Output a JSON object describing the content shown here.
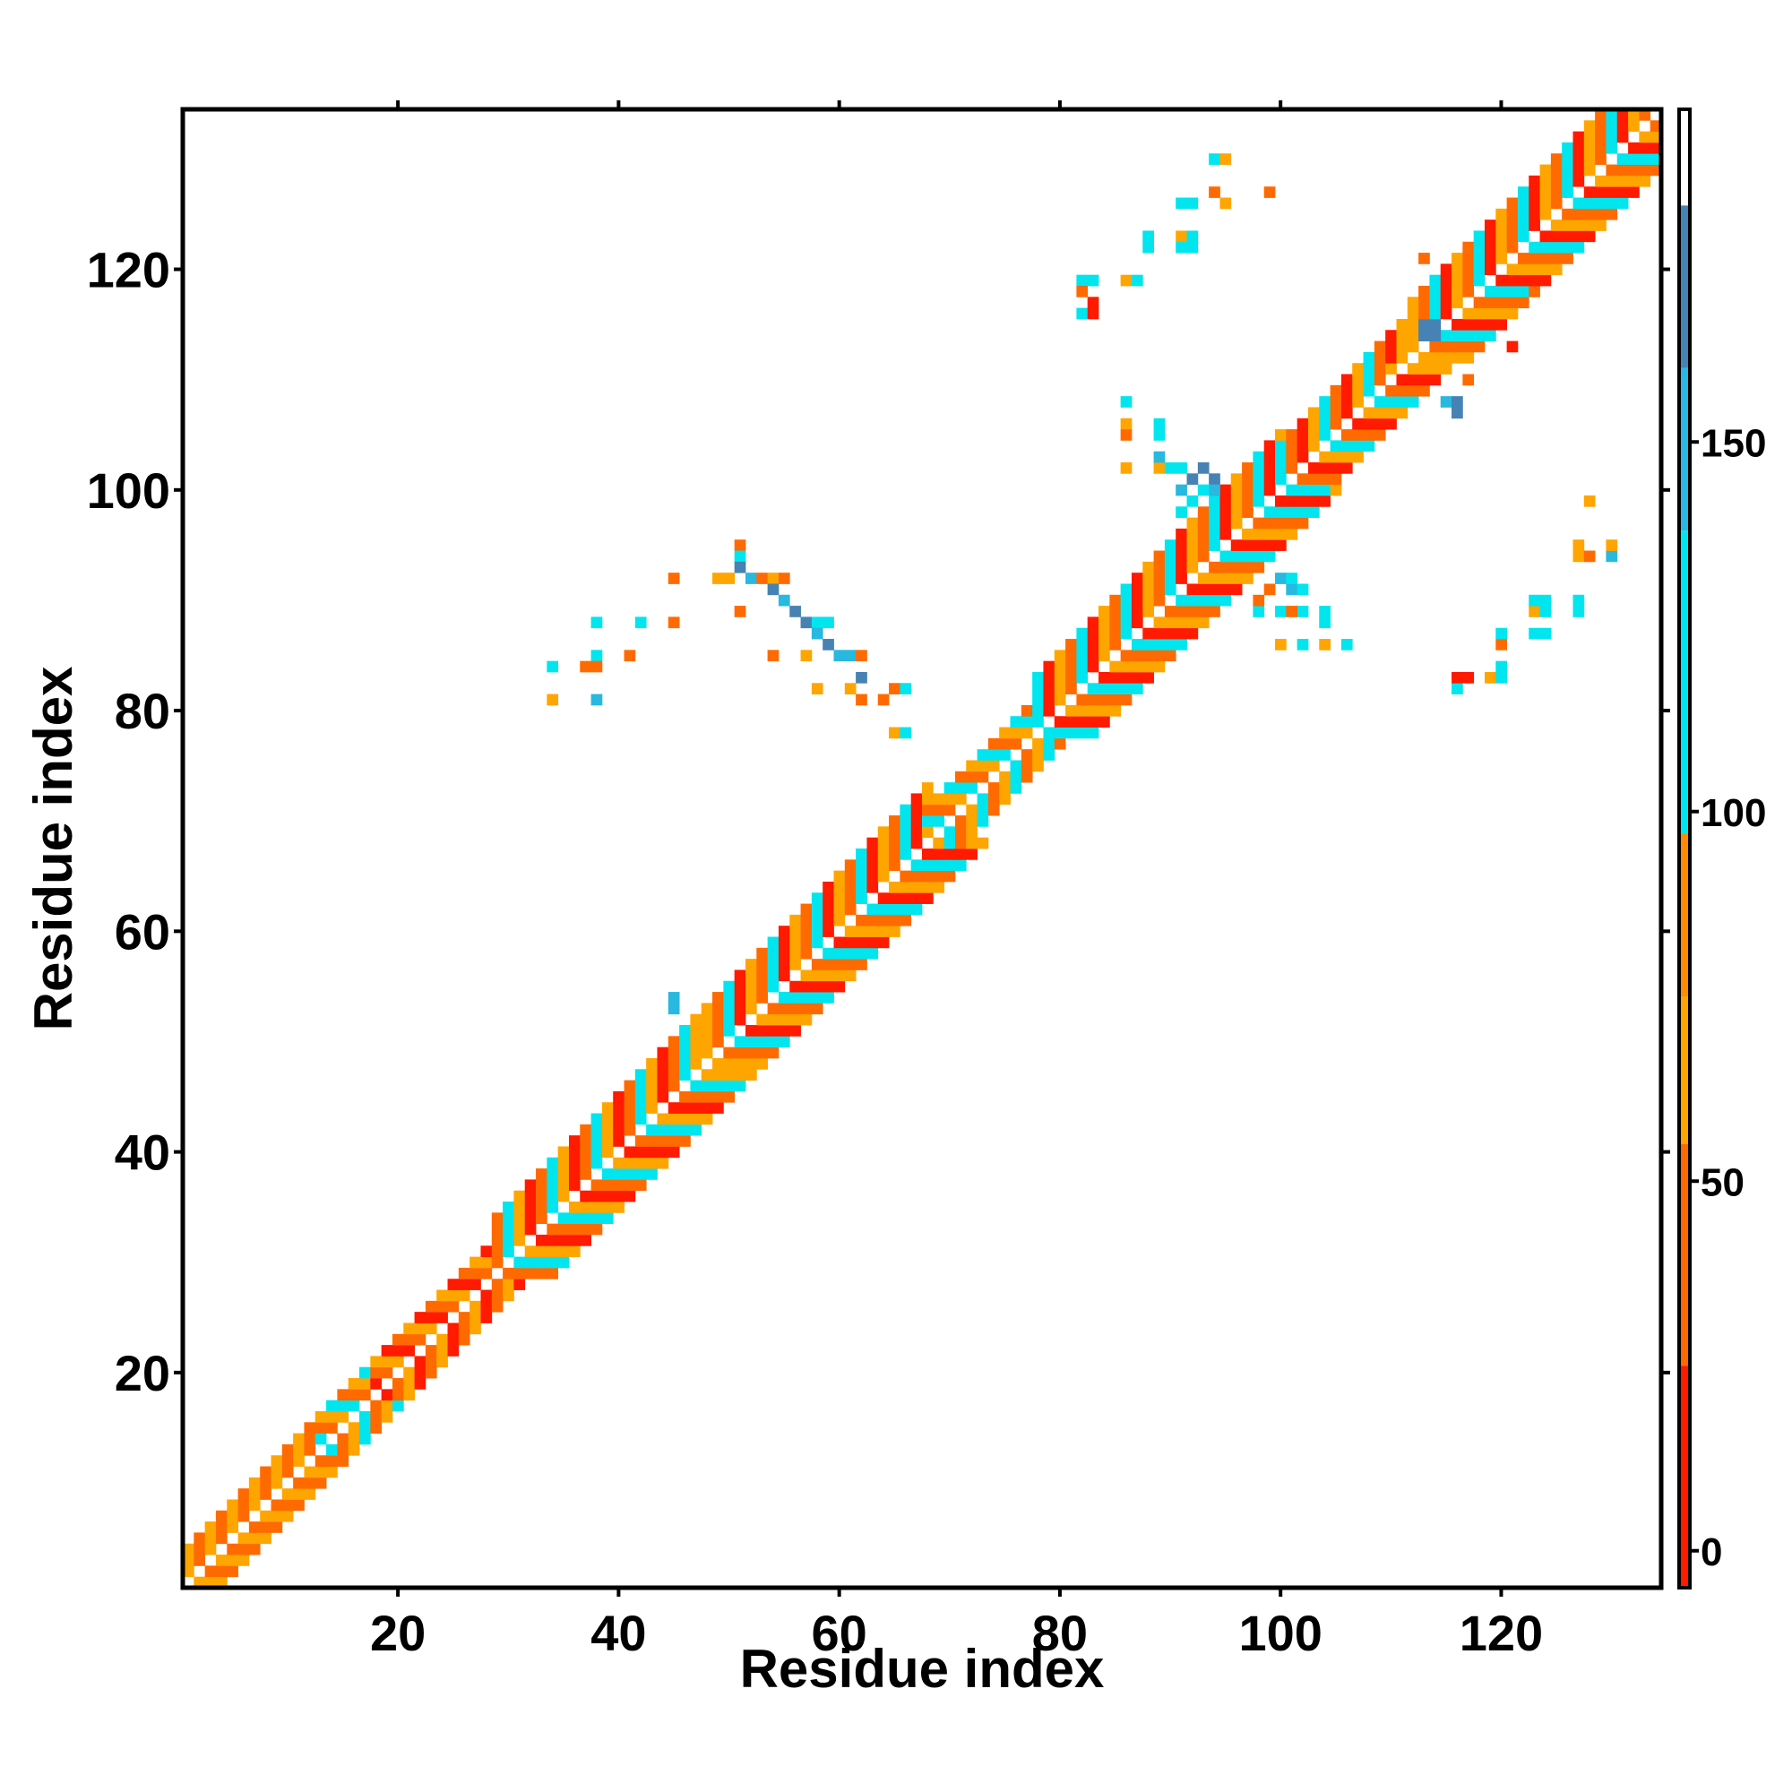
{
  "chart_data": {
    "type": "heatmap",
    "title": "",
    "xlabel": "Residue index",
    "ylabel": "Residue index",
    "xlim": [
      1,
      134
    ],
    "ylim": [
      1,
      134
    ],
    "x_ticks": [
      20,
      40,
      60,
      80,
      100,
      120
    ],
    "y_ticks": [
      20,
      40,
      60,
      80,
      100,
      120
    ],
    "grid": false,
    "symmetric": true,
    "colorbar": {
      "range": [
        -5,
        195
      ],
      "ticks": [
        0,
        50,
        100,
        150
      ],
      "bands": [
        {
          "from": -5,
          "to": 25,
          "color": "#ff1a00"
        },
        {
          "from": 25,
          "to": 55,
          "color": "#ff6a00"
        },
        {
          "from": 55,
          "to": 75,
          "color": "#ffa500"
        },
        {
          "from": 75,
          "to": 97,
          "color": "#ff8c00"
        },
        {
          "from": 97,
          "to": 138,
          "color": "#00e5ee"
        },
        {
          "from": 138,
          "to": 160,
          "color": "#28b8e0"
        },
        {
          "from": 160,
          "to": 182,
          "color": "#4682b4"
        },
        {
          "from": 182,
          "to": 195,
          "color": "#ffffff"
        }
      ]
    },
    "palette": {
      "red": "#ff1a00",
      "dark_orange": "#ff6a00",
      "orange": "#ffa500",
      "cyan": "#00e5ee",
      "light_blue": "#28b8e0",
      "steel_blue": "#4682b4"
    },
    "diagonal_segments": [
      {
        "start": 1,
        "end": 13,
        "band": [
          1,
          2,
          3
        ],
        "colors": [
          "orange",
          "dark_orange"
        ]
      },
      {
        "start": 13,
        "end": 18,
        "band": [
          1,
          2,
          3
        ],
        "colors": [
          "orange",
          "cyan",
          "dark_orange"
        ]
      },
      {
        "start": 18,
        "end": 29,
        "band": [
          1,
          2,
          3
        ],
        "colors": [
          "red",
          "dark_orange",
          "orange"
        ]
      },
      {
        "start": 29,
        "end": 48,
        "band": [
          1,
          2,
          3,
          4,
          5
        ],
        "colors": [
          "dark_orange",
          "cyan",
          "orange",
          "red"
        ]
      },
      {
        "start": 48,
        "end": 68,
        "band": [
          1,
          2,
          3,
          4,
          5
        ],
        "colors": [
          "dark_orange",
          "cyan",
          "red",
          "orange"
        ]
      },
      {
        "start": 68,
        "end": 78,
        "band": [
          1,
          2,
          3
        ],
        "colors": [
          "cyan",
          "dark_orange",
          "orange"
        ]
      },
      {
        "start": 78,
        "end": 100,
        "band": [
          1,
          2,
          3,
          4,
          5
        ],
        "colors": [
          "dark_orange",
          "cyan",
          "red",
          "orange"
        ]
      },
      {
        "start": 100,
        "end": 112,
        "band": [
          1,
          2,
          3,
          4
        ],
        "colors": [
          "dark_orange",
          "red",
          "orange",
          "cyan"
        ]
      },
      {
        "start": 112,
        "end": 134,
        "band": [
          1,
          2,
          3,
          4,
          5
        ],
        "colors": [
          "dark_orange",
          "cyan",
          "red",
          "orange"
        ]
      }
    ],
    "contacts": [
      {
        "i": 51,
        "j": 95,
        "color": "dark_orange"
      },
      {
        "i": 51,
        "j": 94,
        "color": "cyan"
      },
      {
        "i": 51,
        "j": 93,
        "color": "steel_blue"
      },
      {
        "i": 52,
        "j": 92,
        "color": "light_blue"
      },
      {
        "i": 53,
        "j": 92,
        "color": "dark_orange"
      },
      {
        "i": 54,
        "j": 92,
        "color": "orange"
      },
      {
        "i": 55,
        "j": 92,
        "color": "dark_orange"
      },
      {
        "i": 54,
        "j": 91,
        "color": "steel_blue"
      },
      {
        "i": 55,
        "j": 90,
        "color": "light_blue"
      },
      {
        "i": 56,
        "j": 89,
        "color": "steel_blue"
      },
      {
        "i": 57,
        "j": 88,
        "color": "steel_blue"
      },
      {
        "i": 58,
        "j": 88,
        "color": "cyan"
      },
      {
        "i": 59,
        "j": 88,
        "color": "cyan"
      },
      {
        "i": 58,
        "j": 87,
        "color": "light_blue"
      },
      {
        "i": 59,
        "j": 86,
        "color": "steel_blue"
      },
      {
        "i": 60,
        "j": 85,
        "color": "light_blue"
      },
      {
        "i": 61,
        "j": 85,
        "color": "light_blue"
      },
      {
        "i": 62,
        "j": 85,
        "color": "dark_orange"
      },
      {
        "i": 62,
        "j": 83,
        "color": "steel_blue"
      },
      {
        "i": 61,
        "j": 82,
        "color": "orange"
      },
      {
        "i": 62,
        "j": 81,
        "color": "dark_orange"
      },
      {
        "i": 65,
        "j": 82,
        "color": "dark_orange"
      },
      {
        "i": 66,
        "j": 82,
        "color": "cyan"
      },
      {
        "i": 65,
        "j": 78,
        "color": "orange"
      },
      {
        "i": 66,
        "j": 78,
        "color": "cyan"
      },
      {
        "i": 64,
        "j": 81,
        "color": "dark_orange"
      },
      {
        "i": 57,
        "j": 85,
        "color": "orange"
      },
      {
        "i": 54,
        "j": 85,
        "color": "dark_orange"
      },
      {
        "i": 58,
        "j": 82,
        "color": "orange"
      },
      {
        "i": 51,
        "j": 89,
        "color": "dark_orange"
      },
      {
        "i": 49,
        "j": 92,
        "color": "orange"
      },
      {
        "i": 50,
        "j": 92,
        "color": "orange"
      },
      {
        "i": 45,
        "j": 92,
        "color": "dark_orange"
      },
      {
        "i": 45,
        "j": 88,
        "color": "dark_orange"
      },
      {
        "i": 42,
        "j": 88,
        "color": "cyan"
      },
      {
        "i": 38,
        "j": 88,
        "color": "cyan"
      },
      {
        "i": 41,
        "j": 85,
        "color": "dark_orange"
      },
      {
        "i": 38,
        "j": 85,
        "color": "cyan"
      },
      {
        "i": 37,
        "j": 84,
        "color": "dark_orange"
      },
      {
        "i": 38,
        "j": 84,
        "color": "dark_orange"
      },
      {
        "i": 34,
        "j": 84,
        "color": "cyan"
      },
      {
        "i": 34,
        "j": 81,
        "color": "orange"
      },
      {
        "i": 38,
        "j": 81,
        "color": "light_blue"
      },
      {
        "i": 45,
        "j": 54,
        "color": "light_blue"
      },
      {
        "i": 45,
        "j": 53,
        "color": "light_blue"
      },
      {
        "i": 82,
        "j": 119,
        "color": "cyan"
      },
      {
        "i": 83,
        "j": 119,
        "color": "cyan"
      },
      {
        "i": 82,
        "j": 118,
        "color": "dark_orange"
      },
      {
        "i": 83,
        "j": 117,
        "color": "red"
      },
      {
        "i": 82,
        "j": 116,
        "color": "cyan"
      },
      {
        "i": 83,
        "j": 116,
        "color": "red"
      },
      {
        "i": 86,
        "j": 119,
        "color": "orange"
      },
      {
        "i": 87,
        "j": 119,
        "color": "cyan"
      },
      {
        "i": 88,
        "j": 123,
        "color": "cyan"
      },
      {
        "i": 88,
        "j": 122,
        "color": "cyan"
      },
      {
        "i": 91,
        "j": 123,
        "color": "orange"
      },
      {
        "i": 92,
        "j": 123,
        "color": "cyan"
      },
      {
        "i": 91,
        "j": 122,
        "color": "cyan"
      },
      {
        "i": 92,
        "j": 122,
        "color": "cyan"
      },
      {
        "i": 91,
        "j": 126,
        "color": "cyan"
      },
      {
        "i": 92,
        "j": 126,
        "color": "cyan"
      },
      {
        "i": 94,
        "j": 127,
        "color": "dark_orange"
      },
      {
        "i": 95,
        "j": 126,
        "color": "orange"
      },
      {
        "i": 94,
        "j": 130,
        "color": "cyan"
      },
      {
        "i": 95,
        "j": 130,
        "color": "orange"
      },
      {
        "i": 99,
        "j": 127,
        "color": "dark_orange"
      },
      {
        "i": 86,
        "j": 108,
        "color": "cyan"
      },
      {
        "i": 86,
        "j": 106,
        "color": "orange"
      },
      {
        "i": 86,
        "j": 105,
        "color": "dark_orange"
      },
      {
        "i": 89,
        "j": 106,
        "color": "cyan"
      },
      {
        "i": 89,
        "j": 105,
        "color": "cyan"
      },
      {
        "i": 86,
        "j": 102,
        "color": "orange"
      },
      {
        "i": 89,
        "j": 102,
        "color": "orange"
      },
      {
        "i": 89,
        "j": 103,
        "color": "light_blue"
      },
      {
        "i": 90,
        "j": 102,
        "color": "cyan"
      },
      {
        "i": 91,
        "j": 102,
        "color": "cyan"
      },
      {
        "i": 91,
        "j": 100,
        "color": "light_blue"
      },
      {
        "i": 92,
        "j": 101,
        "color": "steel_blue"
      },
      {
        "i": 93,
        "j": 102,
        "color": "steel_blue"
      },
      {
        "i": 94,
        "j": 101,
        "color": "steel_blue"
      },
      {
        "i": 94,
        "j": 100,
        "color": "light_blue"
      },
      {
        "i": 93,
        "j": 100,
        "color": "cyan"
      },
      {
        "i": 92,
        "j": 99,
        "color": "cyan"
      },
      {
        "i": 91,
        "j": 98,
        "color": "cyan"
      },
      {
        "i": 100,
        "j": 86,
        "color": "orange"
      },
      {
        "i": 102,
        "j": 86,
        "color": "cyan"
      },
      {
        "i": 104,
        "j": 86,
        "color": "orange"
      },
      {
        "i": 106,
        "j": 86,
        "color": "cyan"
      },
      {
        "i": 98,
        "j": 89,
        "color": "cyan"
      },
      {
        "i": 102,
        "j": 89,
        "color": "cyan"
      },
      {
        "i": 100,
        "j": 89,
        "color": "cyan"
      },
      {
        "i": 104,
        "j": 89,
        "color": "cyan"
      },
      {
        "i": 104,
        "j": 88,
        "color": "cyan"
      },
      {
        "i": 101,
        "j": 89,
        "color": "dark_orange"
      },
      {
        "i": 98,
        "j": 90,
        "color": "dark_orange"
      },
      {
        "i": 99,
        "j": 91,
        "color": "dark_orange"
      },
      {
        "i": 101,
        "j": 91,
        "color": "light_blue"
      },
      {
        "i": 102,
        "j": 91,
        "color": "cyan"
      },
      {
        "i": 100,
        "j": 92,
        "color": "light_blue"
      },
      {
        "i": 101,
        "j": 92,
        "color": "cyan"
      },
      {
        "i": 113,
        "j": 114,
        "color": "steel_blue"
      },
      {
        "i": 114,
        "j": 114,
        "color": "steel_blue"
      },
      {
        "i": 113,
        "j": 115,
        "color": "steel_blue"
      },
      {
        "i": 114,
        "j": 115,
        "color": "steel_blue"
      },
      {
        "i": 116,
        "j": 82,
        "color": "cyan"
      },
      {
        "i": 116,
        "j": 83,
        "color": "red"
      },
      {
        "i": 117,
        "j": 83,
        "color": "red"
      },
      {
        "i": 119,
        "j": 83,
        "color": "orange"
      },
      {
        "i": 120,
        "j": 83,
        "color": "cyan"
      },
      {
        "i": 120,
        "j": 84,
        "color": "cyan"
      },
      {
        "i": 120,
        "j": 86,
        "color": "dark_orange"
      },
      {
        "i": 120,
        "j": 87,
        "color": "cyan"
      },
      {
        "i": 123,
        "j": 87,
        "color": "cyan"
      },
      {
        "i": 124,
        "j": 87,
        "color": "cyan"
      },
      {
        "i": 123,
        "j": 89,
        "color": "orange"
      },
      {
        "i": 124,
        "j": 89,
        "color": "cyan"
      },
      {
        "i": 123,
        "j": 90,
        "color": "cyan"
      },
      {
        "i": 124,
        "j": 90,
        "color": "cyan"
      },
      {
        "i": 127,
        "j": 89,
        "color": "cyan"
      },
      {
        "i": 127,
        "j": 90,
        "color": "cyan"
      },
      {
        "i": 127,
        "j": 94,
        "color": "orange"
      },
      {
        "i": 127,
        "j": 95,
        "color": "orange"
      },
      {
        "i": 128,
        "j": 94,
        "color": "dark_orange"
      },
      {
        "i": 130,
        "j": 94,
        "color": "light_blue"
      },
      {
        "i": 130,
        "j": 95,
        "color": "orange"
      },
      {
        "i": 128,
        "j": 99,
        "color": "orange"
      },
      {
        "i": 110,
        "j": 111,
        "color": "orange"
      },
      {
        "i": 111,
        "j": 110,
        "color": "red"
      },
      {
        "i": 115,
        "j": 108,
        "color": "light_blue"
      },
      {
        "i": 116,
        "j": 108,
        "color": "steel_blue"
      },
      {
        "i": 116,
        "j": 107,
        "color": "steel_blue"
      },
      {
        "i": 117,
        "j": 110,
        "color": "dark_orange"
      },
      {
        "i": 121,
        "j": 113,
        "color": "red"
      },
      {
        "i": 123,
        "j": 118,
        "color": "dark_orange"
      },
      {
        "i": 113,
        "j": 121,
        "color": "dark_orange"
      }
    ]
  }
}
